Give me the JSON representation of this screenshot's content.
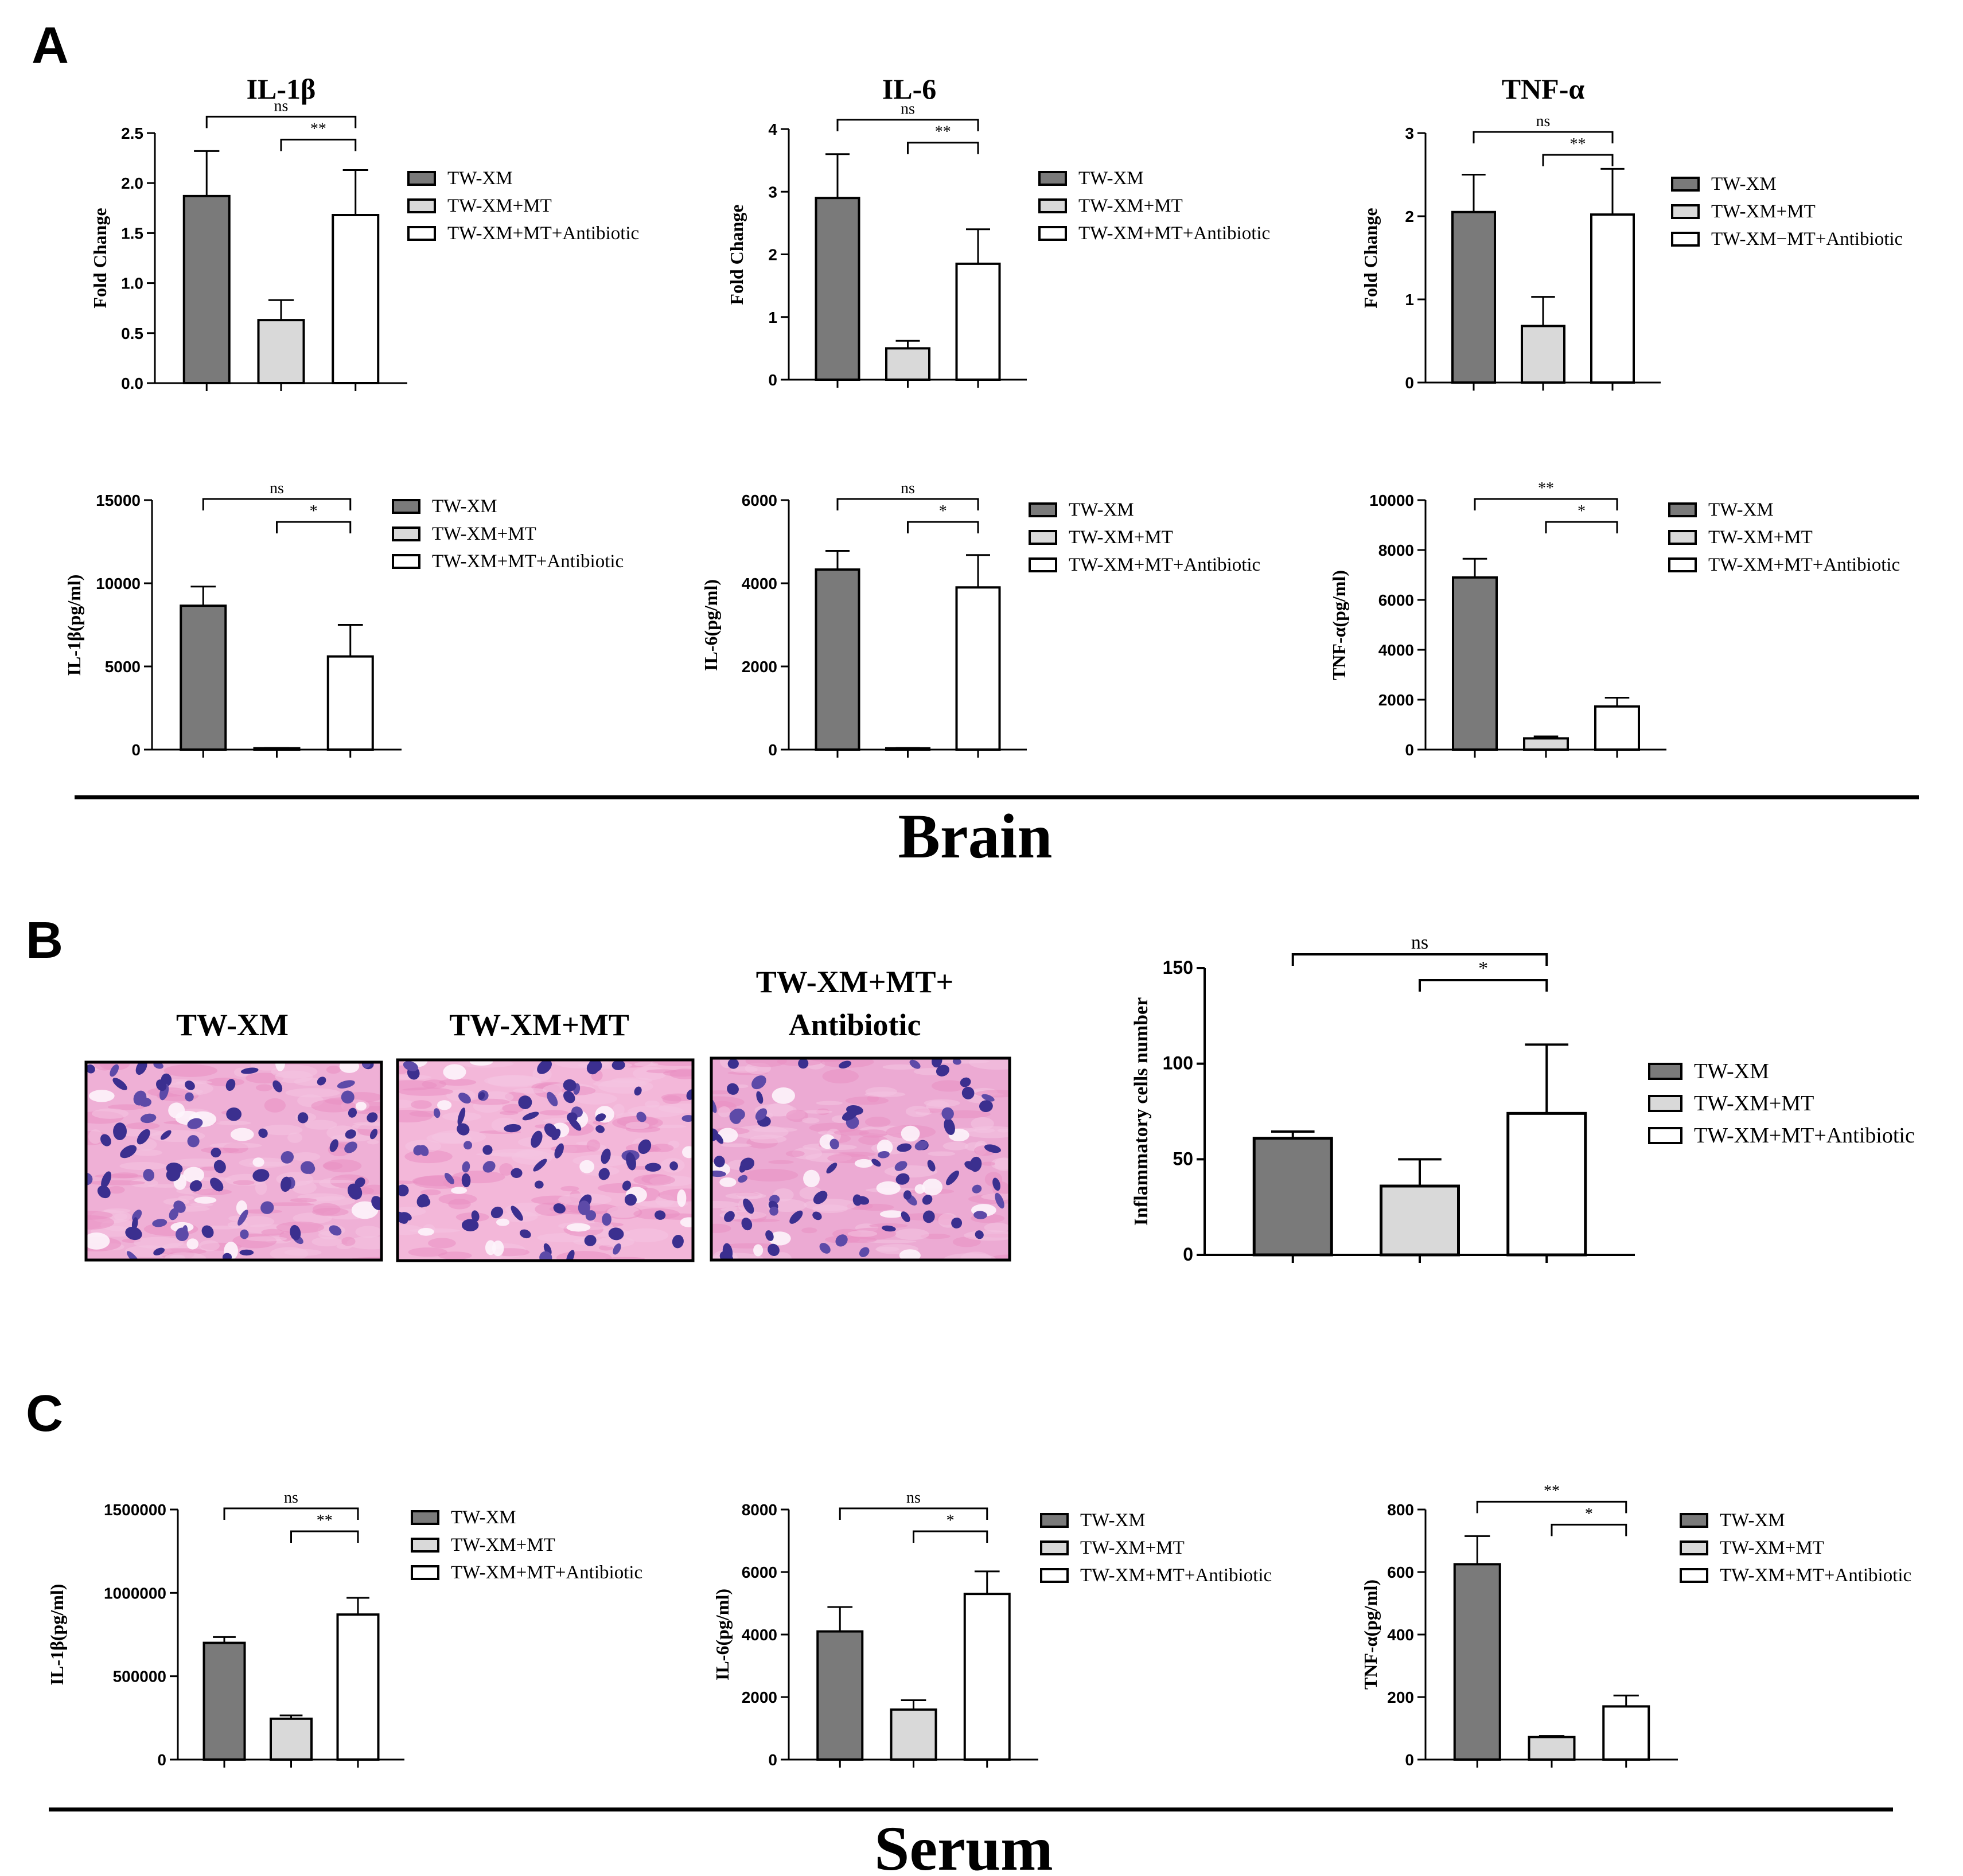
{
  "panel_labels": [
    "A",
    "B",
    "C"
  ],
  "section_labels": {
    "brain": "Brain",
    "serum": "Serum"
  },
  "legend_labels": [
    "TW-XM",
    "TW-XM+MT",
    "TW-XM+MT+Antibiotic"
  ],
  "legend_labels_variant": [
    "TW-XM",
    "TW-XM+MT",
    "TW-XM−MT+Antibiotic"
  ],
  "colors": {
    "TW-XM": "#7a7a7a",
    "TW-XM+MT": "#d9d9d9",
    "TW-XM+MT+Antibiotic": "#ffffff"
  },
  "histology": {
    "titles": [
      "TW-XM",
      "TW-XM+MT",
      "TW-XM+MT+",
      "Antibiotic"
    ]
  },
  "chart_data": [
    {
      "id": "a-il1b-fc",
      "type": "bar",
      "title": "IL-1β",
      "ylabel": "Fold Change",
      "ylim": [
        0,
        2.5
      ],
      "yticks": [
        "0.0",
        "0.5",
        "1.0",
        "1.5",
        "2.0",
        "2.5"
      ],
      "categories": [
        "TW-XM",
        "TW-XM+MT",
        "TW-XM+MT+Antibiotic"
      ],
      "values": [
        1.87,
        0.63,
        1.68
      ],
      "errors": [
        0.45,
        0.2,
        0.45
      ],
      "brackets": [
        {
          "from": 0,
          "to": 2,
          "label": "ns"
        },
        {
          "from": 1,
          "to": 2,
          "label": "**"
        }
      ],
      "legend_variant": false
    },
    {
      "id": "a-il6-fc",
      "type": "bar",
      "title": "IL-6",
      "ylabel": "Fold Change",
      "ylim": [
        0,
        4
      ],
      "yticks": [
        "0",
        "1",
        "2",
        "3",
        "4"
      ],
      "categories": [
        "TW-XM",
        "TW-XM+MT",
        "TW-XM+MT+Antibiotic"
      ],
      "values": [
        2.9,
        0.5,
        1.85
      ],
      "errors": [
        0.7,
        0.12,
        0.55
      ],
      "brackets": [
        {
          "from": 0,
          "to": 2,
          "label": "ns"
        },
        {
          "from": 1,
          "to": 2,
          "label": "**"
        }
      ],
      "legend_variant": false
    },
    {
      "id": "a-tnfa-fc",
      "type": "bar",
      "title": "TNF-α",
      "ylabel": "Fold Change",
      "ylim": [
        0,
        3
      ],
      "yticks": [
        "0",
        "1",
        "2",
        "3"
      ],
      "categories": [
        "TW-XM",
        "TW-XM+MT",
        "TW-XM+MT+Antibiotic"
      ],
      "values": [
        2.05,
        0.68,
        2.02
      ],
      "errors": [
        0.45,
        0.35,
        0.55
      ],
      "brackets": [
        {
          "from": 0,
          "to": 2,
          "label": "ns"
        },
        {
          "from": 1,
          "to": 2,
          "label": "**"
        }
      ],
      "legend_variant": true
    },
    {
      "id": "a-il1b-conc",
      "type": "bar",
      "title": "",
      "ylabel": "IL-1β(pg/ml)",
      "ylim": [
        0,
        15000
      ],
      "yticks": [
        "0",
        "5000",
        "10000",
        "15000"
      ],
      "categories": [
        "TW-XM",
        "TW-XM+MT",
        "TW-XM+MT+Antibiotic"
      ],
      "values": [
        8650,
        80,
        5600
      ],
      "errors": [
        1150,
        20,
        1900
      ],
      "brackets": [
        {
          "from": 0,
          "to": 2,
          "label": "ns"
        },
        {
          "from": 1,
          "to": 2,
          "label": "*"
        }
      ],
      "legend_variant": false
    },
    {
      "id": "a-il6-conc",
      "type": "bar",
      "title": "",
      "ylabel": "IL-6(pg/ml)",
      "ylim": [
        0,
        6000
      ],
      "yticks": [
        "0",
        "2000",
        "4000",
        "6000"
      ],
      "categories": [
        "TW-XM",
        "TW-XM+MT",
        "TW-XM+MT+Antibiotic"
      ],
      "values": [
        4330,
        30,
        3900
      ],
      "errors": [
        450,
        10,
        780
      ],
      "brackets": [
        {
          "from": 0,
          "to": 2,
          "label": "ns"
        },
        {
          "from": 1,
          "to": 2,
          "label": "*"
        }
      ],
      "legend_variant": false
    },
    {
      "id": "a-tnfa-conc",
      "type": "bar",
      "title": "",
      "ylabel": "TNF-α(pg/ml)",
      "ylim": [
        0,
        10000
      ],
      "yticks": [
        "0",
        "2000",
        "4000",
        "6000",
        "8000",
        "10000"
      ],
      "categories": [
        "TW-XM",
        "TW-XM+MT",
        "TW-XM+MT+Antibiotic"
      ],
      "values": [
        6900,
        450,
        1730
      ],
      "errors": [
        750,
        80,
        350
      ],
      "brackets": [
        {
          "from": 0,
          "to": 2,
          "label": "**"
        },
        {
          "from": 1,
          "to": 2,
          "label": "*"
        }
      ],
      "legend_variant": false
    },
    {
      "id": "b-inflammatory",
      "type": "bar",
      "title": "",
      "ylabel": "Inflammatory cells number",
      "ylim": [
        0,
        150
      ],
      "yticks": [
        "0",
        "50",
        "100",
        "150"
      ],
      "categories": [
        "TW-XM",
        "TW-XM+MT",
        "TW-XM+MT+Antibiotic"
      ],
      "values": [
        61,
        36,
        74
      ],
      "errors": [
        3.5,
        14,
        36
      ],
      "brackets": [
        {
          "from": 0,
          "to": 2,
          "label": "ns"
        },
        {
          "from": 1,
          "to": 2,
          "label": "*"
        }
      ],
      "legend_variant": false
    },
    {
      "id": "c-il1b-serum",
      "type": "bar",
      "title": "",
      "ylabel": "IL-1β(pg/ml)",
      "ylim": [
        0,
        1500000
      ],
      "yticks": [
        "0",
        "500000",
        "1000000",
        "1500000"
      ],
      "categories": [
        "TW-XM",
        "TW-XM+MT",
        "TW-XM+MT+Antibiotic"
      ],
      "values": [
        700000,
        245000,
        870000
      ],
      "errors": [
        35000,
        20000,
        100000
      ],
      "brackets": [
        {
          "from": 0,
          "to": 2,
          "label": "ns"
        },
        {
          "from": 1,
          "to": 2,
          "label": "**"
        }
      ],
      "legend_variant": false
    },
    {
      "id": "c-il6-serum",
      "type": "bar",
      "title": "",
      "ylabel": "IL-6(pg/ml)",
      "ylim": [
        0,
        8000
      ],
      "yticks": [
        "0",
        "2000",
        "4000",
        "6000",
        "8000"
      ],
      "categories": [
        "TW-XM",
        "TW-XM+MT",
        "TW-XM+MT+Antibiotic"
      ],
      "values": [
        4100,
        1600,
        5300
      ],
      "errors": [
        780,
        300,
        720
      ],
      "brackets": [
        {
          "from": 0,
          "to": 2,
          "label": "ns"
        },
        {
          "from": 1,
          "to": 2,
          "label": "*"
        }
      ],
      "legend_variant": false
    },
    {
      "id": "c-tnfa-serum",
      "type": "bar",
      "title": "",
      "ylabel": "TNF-α(pg/ml)",
      "ylim": [
        0,
        800
      ],
      "yticks": [
        "0",
        "200",
        "400",
        "600",
        "800"
      ],
      "categories": [
        "TW-XM",
        "TW-XM+MT",
        "TW-XM+MT+Antibiotic"
      ],
      "values": [
        625,
        72,
        170
      ],
      "errors": [
        90,
        4,
        35
      ],
      "brackets": [
        {
          "from": 0,
          "to": 2,
          "label": "**"
        },
        {
          "from": 1,
          "to": 2,
          "label": "*"
        }
      ],
      "legend_variant": false
    }
  ]
}
